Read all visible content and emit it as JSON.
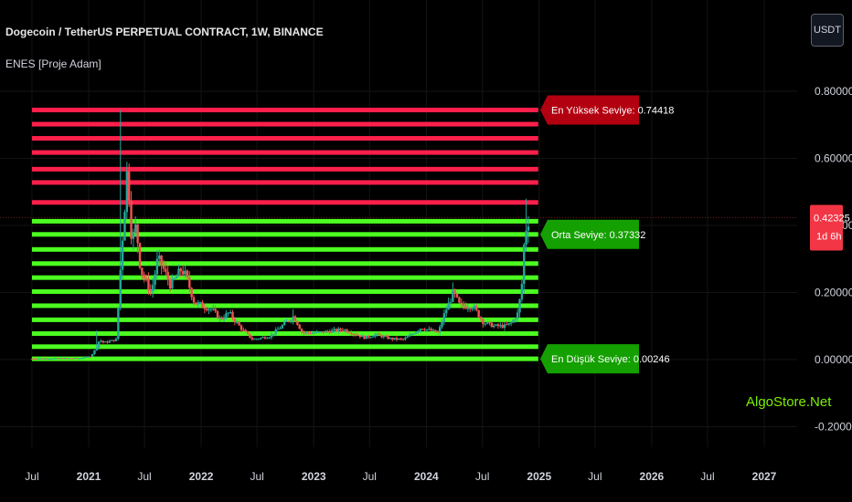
{
  "header": {
    "symbol_title": "Dogecoin / TetherUS PERPETUAL CONTRACT, 1W, BINANCE",
    "indicator_name": "ENES [Proje Adam]",
    "currency_button": "USDT"
  },
  "watermark": "AlgoStore.Net",
  "colors": {
    "background": "#000000",
    "upper_levels": "#ff1f4b",
    "lower_levels": "#4cff20",
    "label_high": "#b30010",
    "label_mid": "#14a000",
    "label_low": "#14a000",
    "price_badge": "#f23645",
    "candle_up": "#26a69a",
    "candle_down": "#ef5350"
  },
  "chart_data": {
    "type": "candlestick",
    "y_axis": {
      "ticks": [
        "0.80000",
        "0.60000",
        "0.40000",
        "0.20000",
        "0.00000",
        "-0.20000"
      ],
      "tick_values": [
        0.8,
        0.6,
        0.4,
        0.2,
        0.0,
        -0.2
      ],
      "range": [
        -0.26,
        0.89
      ]
    },
    "x_axis": {
      "ticks": [
        "Jul",
        "2021",
        "Jul",
        "2022",
        "Jul",
        "2023",
        "Jul",
        "2024",
        "Jul",
        "2025",
        "Jul",
        "2026",
        "Jul",
        "2027"
      ],
      "tick_dates": [
        "2020-07-01",
        "2021-01-01",
        "2021-07-01",
        "2022-01-01",
        "2022-07-01",
        "2023-01-01",
        "2023-07-01",
        "2024-01-01",
        "2024-07-01",
        "2025-01-01",
        "2025-07-01",
        "2026-01-01",
        "2026-07-01",
        "2027-01-01"
      ],
      "range": [
        "2020-06-01",
        "2027-04-15"
      ]
    },
    "levels_upper": [
      0.74418,
      0.70195,
      0.65973,
      0.6175,
      0.56778,
      0.5281,
      0.46863
    ],
    "levels_lower": [
      0.4125,
      0.37332,
      0.32846,
      0.28638,
      0.24444,
      0.20284,
      0.16068,
      0.11875,
      0.07766,
      0.03861,
      0.00246
    ],
    "labels": [
      {
        "text": "En Yüksek Seviye: 0.74418",
        "value": 0.74418,
        "kind": "high"
      },
      {
        "text": "Orta Seviye: 0.37332",
        "value": 0.37332,
        "kind": "mid"
      },
      {
        "text": "En Düşük Seviye: 0.00246",
        "value": 0.00246,
        "kind": "low"
      }
    ],
    "last_price": {
      "value": "0.42325",
      "countdown": "1d 6h"
    },
    "price_path": [
      [
        "2020-07-01",
        0.003
      ],
      [
        "2020-12-01",
        0.004
      ],
      [
        "2021-01-08",
        0.01
      ],
      [
        "2021-01-29",
        0.04
      ],
      [
        "2021-02-05",
        0.06
      ],
      [
        "2021-02-19",
        0.05
      ],
      [
        "2021-04-01",
        0.06
      ],
      [
        "2021-04-16",
        0.3
      ],
      [
        "2021-05-07",
        0.58
      ],
      [
        "2021-05-21",
        0.35
      ],
      [
        "2021-06-04",
        0.4
      ],
      [
        "2021-06-18",
        0.27
      ],
      [
        "2021-07-02",
        0.24
      ],
      [
        "2021-07-23",
        0.2
      ],
      [
        "2021-08-13",
        0.3
      ],
      [
        "2021-08-27",
        0.28
      ],
      [
        "2021-09-24",
        0.22
      ],
      [
        "2021-10-29",
        0.27
      ],
      [
        "2021-11-12",
        0.25
      ],
      [
        "2021-12-10",
        0.17
      ],
      [
        "2022-01-07",
        0.16
      ],
      [
        "2022-02-04",
        0.15
      ],
      [
        "2022-03-04",
        0.12
      ],
      [
        "2022-04-01",
        0.14
      ],
      [
        "2022-05-13",
        0.09
      ],
      [
        "2022-06-17",
        0.06
      ],
      [
        "2022-08-12",
        0.07
      ],
      [
        "2022-10-28",
        0.13
      ],
      [
        "2022-11-25",
        0.08
      ],
      [
        "2023-01-13",
        0.08
      ],
      [
        "2023-04-07",
        0.09
      ],
      [
        "2023-06-16",
        0.065
      ],
      [
        "2023-07-21",
        0.075
      ],
      [
        "2023-09-08",
        0.062
      ],
      [
        "2023-10-20",
        0.06
      ],
      [
        "2023-12-15",
        0.095
      ],
      [
        "2024-02-09",
        0.08
      ],
      [
        "2024-03-01",
        0.14
      ],
      [
        "2024-03-29",
        0.2
      ],
      [
        "2024-04-19",
        0.16
      ],
      [
        "2024-05-31",
        0.16
      ],
      [
        "2024-07-05",
        0.11
      ],
      [
        "2024-08-09",
        0.1
      ],
      [
        "2024-09-13",
        0.1
      ],
      [
        "2024-10-04",
        0.11
      ],
      [
        "2024-10-25",
        0.14
      ],
      [
        "2024-11-08",
        0.24
      ],
      [
        "2024-11-15",
        0.38
      ],
      [
        "2024-11-22",
        0.4
      ],
      [
        "2024-11-29",
        0.42325
      ]
    ],
    "highs": [
      [
        "2021-01-29",
        0.087
      ],
      [
        "2021-04-16",
        0.74418
      ],
      [
        "2021-05-07",
        0.59
      ],
      [
        "2022-10-28",
        0.15
      ],
      [
        "2024-03-29",
        0.23
      ],
      [
        "2024-11-22",
        0.48
      ]
    ]
  }
}
